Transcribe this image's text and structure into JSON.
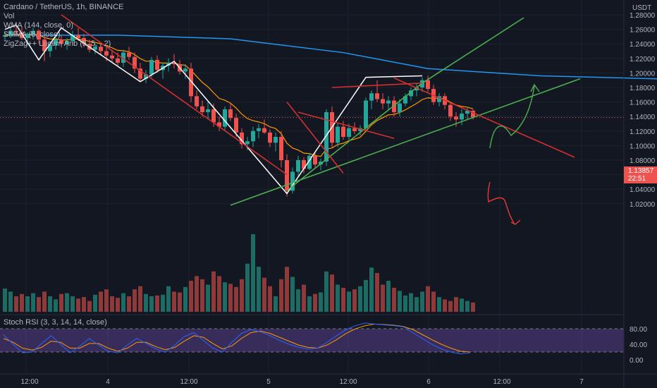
{
  "header": {
    "symbol_line": "Cardano / TetherUS, 1h, BINANCE",
    "indicators": [
      "Vol",
      "WMA (144, close, 0)",
      "SMMA (6, close)",
      "ZigZag++ Lucem Anb (5, 5, , 2)"
    ],
    "rsi_label": "Stoch RSI (3, 3, 14, 14, close)"
  },
  "price_axis": {
    "unit": "USDT",
    "ticks": [
      "1.28000",
      "1.26000",
      "1.24000",
      "1.22000",
      "1.20000",
      "1.18000",
      "1.16000",
      "1.14000",
      "1.12000",
      "1.10000",
      "1.08000",
      "1.06000",
      "1.04000",
      "1.02000"
    ],
    "last_price": "1.13857",
    "countdown": "22:51"
  },
  "rsi_axis": {
    "ticks": [
      "80.00",
      "40.00",
      "0.00"
    ]
  },
  "time_axis": {
    "ticks": [
      "12:00",
      "4",
      "12:00",
      "5",
      "12:00",
      "6",
      "12:00",
      "7"
    ]
  },
  "colors": {
    "background": "#131722",
    "bull": "#26a69a",
    "bear": "#ef5350",
    "wma": "#2196f3",
    "smma": "#ff9800",
    "zigzag": "#ffffff",
    "trend_red": "#d32f2f",
    "trend_green": "#4caf50",
    "rsi_band": "#7e57c2"
  },
  "chart_data": {
    "type": "candlestick",
    "symbol": "ADA/USDT",
    "timeframe": "1h",
    "ylim": [
      1.01,
      1.29
    ],
    "candles": [
      [
        1.25,
        1.258,
        1.244,
        1.252
      ],
      [
        1.252,
        1.262,
        1.248,
        1.258
      ],
      [
        1.258,
        1.266,
        1.25,
        1.256
      ],
      [
        1.256,
        1.264,
        1.245,
        1.248
      ],
      [
        1.248,
        1.256,
        1.238,
        1.254
      ],
      [
        1.254,
        1.262,
        1.246,
        1.258
      ],
      [
        1.258,
        1.26,
        1.24,
        1.246
      ],
      [
        1.246,
        1.25,
        1.216,
        1.23
      ],
      [
        1.23,
        1.242,
        1.222,
        1.238
      ],
      [
        1.238,
        1.25,
        1.232,
        1.246
      ],
      [
        1.246,
        1.252,
        1.235,
        1.24
      ],
      [
        1.24,
        1.248,
        1.232,
        1.244
      ],
      [
        1.244,
        1.258,
        1.238,
        1.252
      ],
      [
        1.252,
        1.262,
        1.244,
        1.248
      ],
      [
        1.248,
        1.254,
        1.236,
        1.24
      ],
      [
        1.24,
        1.246,
        1.228,
        1.232
      ],
      [
        1.232,
        1.24,
        1.226,
        1.236
      ],
      [
        1.236,
        1.242,
        1.224,
        1.23
      ],
      [
        1.23,
        1.236,
        1.216,
        1.224
      ],
      [
        1.224,
        1.232,
        1.214,
        1.22
      ],
      [
        1.22,
        1.228,
        1.21,
        1.214
      ],
      [
        1.214,
        1.232,
        1.208,
        1.228
      ],
      [
        1.228,
        1.236,
        1.218,
        1.222
      ],
      [
        1.222,
        1.228,
        1.2,
        1.206
      ],
      [
        1.206,
        1.214,
        1.188,
        1.192
      ],
      [
        1.192,
        1.204,
        1.186,
        1.198
      ],
      [
        1.198,
        1.222,
        1.194,
        1.218
      ],
      [
        1.218,
        1.224,
        1.2,
        1.204
      ],
      [
        1.204,
        1.214,
        1.192,
        1.21
      ],
      [
        1.21,
        1.22,
        1.202,
        1.214
      ],
      [
        1.214,
        1.226,
        1.206,
        1.212
      ],
      [
        1.212,
        1.218,
        1.198,
        1.202
      ],
      [
        1.202,
        1.212,
        1.192,
        1.206
      ],
      [
        1.206,
        1.214,
        1.16,
        1.168
      ],
      [
        1.168,
        1.176,
        1.15,
        1.154
      ],
      [
        1.154,
        1.162,
        1.14,
        1.146
      ],
      [
        1.146,
        1.16,
        1.136,
        1.15
      ],
      [
        1.15,
        1.158,
        1.126,
        1.132
      ],
      [
        1.132,
        1.14,
        1.12,
        1.126
      ],
      [
        1.126,
        1.154,
        1.12,
        1.15
      ],
      [
        1.15,
        1.158,
        1.134,
        1.138
      ],
      [
        1.138,
        1.144,
        1.112,
        1.118
      ],
      [
        1.118,
        1.124,
        1.096,
        1.102
      ],
      [
        1.102,
        1.112,
        1.094,
        1.106
      ],
      [
        1.106,
        1.126,
        1.098,
        1.12
      ],
      [
        1.12,
        1.13,
        1.11,
        1.124
      ],
      [
        1.124,
        1.136,
        1.116,
        1.118
      ],
      [
        1.118,
        1.122,
        1.098,
        1.104
      ],
      [
        1.104,
        1.118,
        1.092,
        1.112
      ],
      [
        1.112,
        1.12,
        1.07,
        1.08
      ],
      [
        1.08,
        1.088,
        1.03,
        1.038
      ],
      [
        1.038,
        1.07,
        1.034,
        1.064
      ],
      [
        1.064,
        1.086,
        1.056,
        1.08
      ],
      [
        1.08,
        1.084,
        1.062,
        1.068
      ],
      [
        1.068,
        1.09,
        1.066,
        1.086
      ],
      [
        1.086,
        1.09,
        1.07,
        1.074
      ],
      [
        1.074,
        1.082,
        1.066,
        1.078
      ],
      [
        1.078,
        1.15,
        1.072,
        1.146
      ],
      [
        1.146,
        1.154,
        1.096,
        1.104
      ],
      [
        1.104,
        1.13,
        1.098,
        1.126
      ],
      [
        1.126,
        1.134,
        1.108,
        1.112
      ],
      [
        1.112,
        1.13,
        1.108,
        1.124
      ],
      [
        1.124,
        1.132,
        1.116,
        1.12
      ],
      [
        1.12,
        1.128,
        1.114,
        1.124
      ],
      [
        1.124,
        1.166,
        1.118,
        1.162
      ],
      [
        1.162,
        1.176,
        1.15,
        1.172
      ],
      [
        1.172,
        1.19,
        1.16,
        1.164
      ],
      [
        1.164,
        1.172,
        1.15,
        1.158
      ],
      [
        1.158,
        1.168,
        1.15,
        1.162
      ],
      [
        1.162,
        1.168,
        1.14,
        1.146
      ],
      [
        1.146,
        1.164,
        1.14,
        1.158
      ],
      [
        1.158,
        1.172,
        1.154,
        1.168
      ],
      [
        1.168,
        1.18,
        1.162,
        1.176
      ],
      [
        1.176,
        1.186,
        1.168,
        1.18
      ],
      [
        1.18,
        1.194,
        1.174,
        1.19
      ],
      [
        1.19,
        1.196,
        1.174,
        1.178
      ],
      [
        1.178,
        1.184,
        1.156,
        1.16
      ],
      [
        1.16,
        1.172,
        1.154,
        1.168
      ],
      [
        1.168,
        1.172,
        1.15,
        1.156
      ],
      [
        1.156,
        1.16,
        1.134,
        1.14
      ],
      [
        1.14,
        1.146,
        1.126,
        1.136
      ],
      [
        1.136,
        1.15,
        1.128,
        1.144
      ],
      [
        1.144,
        1.152,
        1.136,
        1.148
      ],
      [
        1.148,
        1.15,
        1.136,
        1.139
      ]
    ],
    "volume": [
      0.3,
      0.26,
      0.2,
      0.23,
      0.2,
      0.24,
      0.19,
      0.26,
      0.2,
      0.16,
      0.23,
      0.24,
      0.2,
      0.17,
      0.19,
      0.14,
      0.22,
      0.26,
      0.29,
      0.2,
      0.18,
      0.24,
      0.2,
      0.29,
      0.33,
      0.23,
      0.2,
      0.21,
      0.22,
      0.33,
      0.26,
      0.25,
      0.32,
      0.4,
      0.46,
      0.42,
      0.35,
      0.52,
      0.46,
      0.38,
      0.36,
      0.32,
      0.42,
      0.62,
      1.0,
      0.58,
      0.44,
      0.33,
      0.2,
      0.42,
      0.58,
      0.45,
      0.29,
      0.35,
      0.2,
      0.23,
      0.25,
      0.52,
      0.48,
      0.35,
      0.31,
      0.26,
      0.29,
      0.33,
      0.41,
      0.57,
      0.5,
      0.35,
      0.4,
      0.31,
      0.27,
      0.21,
      0.24,
      0.19,
      0.26,
      0.33,
      0.26,
      0.19,
      0.16,
      0.14,
      0.19,
      0.17,
      0.14,
      0.12
    ],
    "wma": [
      [
        0,
        1.252
      ],
      [
        20,
        1.252
      ],
      [
        40,
        1.247
      ],
      [
        60,
        1.228
      ],
      [
        75,
        1.206
      ],
      [
        95,
        1.196
      ],
      [
        120,
        1.191
      ],
      [
        144,
        1.1855
      ]
    ],
    "zigzag": [
      [
        0,
        1.26
      ],
      [
        2,
        1.266
      ],
      [
        6,
        1.218
      ],
      [
        10,
        1.262
      ],
      [
        24,
        1.188
      ],
      [
        30,
        1.216
      ],
      [
        50,
        1.034
      ],
      [
        64,
        1.194
      ],
      [
        74,
        1.196
      ]
    ],
    "stoch_rsi_k": [
      65,
      40,
      18,
      20,
      42,
      62,
      40,
      18,
      35,
      55,
      38,
      22,
      18,
      38,
      55,
      42,
      28,
      20,
      38,
      60,
      70,
      50,
      30,
      20,
      45,
      68,
      78,
      72,
      62,
      50,
      40,
      32,
      28,
      30,
      45,
      62,
      78,
      88,
      95,
      92,
      90,
      88,
      85,
      70,
      55,
      40,
      28,
      20,
      15,
      18
    ],
    "stoch_rsi_d": [
      55,
      45,
      30,
      25,
      32,
      48,
      45,
      30,
      30,
      42,
      42,
      30,
      22,
      30,
      45,
      45,
      34,
      26,
      32,
      48,
      62,
      58,
      42,
      28,
      36,
      55,
      70,
      74,
      68,
      58,
      48,
      38,
      32,
      30,
      38,
      52,
      68,
      80,
      88,
      92,
      91,
      89,
      86,
      78,
      65,
      52,
      40,
      30,
      22,
      20
    ],
    "rsi_bands": [
      20,
      80
    ],
    "price_ticks": [
      1.28,
      1.26,
      1.24,
      1.22,
      1.2,
      1.18,
      1.16,
      1.14,
      1.12,
      1.1,
      1.08,
      1.06,
      1.04,
      1.02
    ],
    "rsi_ticks": [
      80,
      40,
      0
    ]
  }
}
